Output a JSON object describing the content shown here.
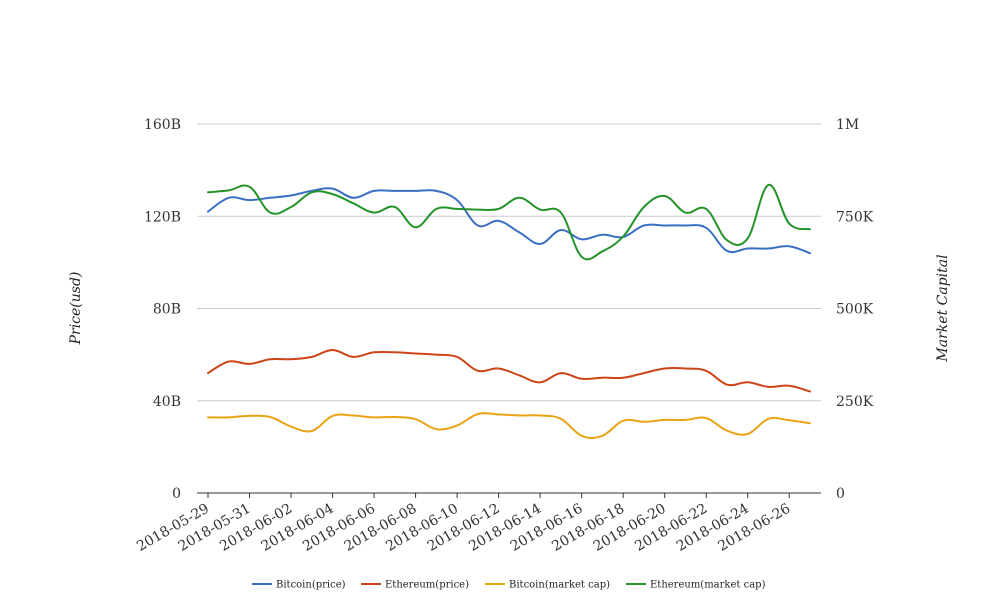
{
  "chart_data": {
    "type": "line",
    "ylabel": "Price(usd)",
    "y2label": "Market Capital",
    "ylim": [
      0,
      160000000000
    ],
    "y2lim": [
      0,
      1000000
    ],
    "yticks": [
      "0",
      "40B",
      "80B",
      "120B",
      "160B"
    ],
    "y2ticks": [
      "0",
      "250K",
      "500K",
      "750K",
      "1M"
    ],
    "xtick_labels": [
      "2018-05-29",
      "2018-05-31",
      "2018-06-02",
      "2018-06-04",
      "2018-06-06",
      "2018-06-08",
      "2018-06-10",
      "2018-06-12",
      "2018-06-14",
      "2018-06-16",
      "2018-06-18",
      "2018-06-20",
      "2018-06-22",
      "2018-06-24",
      "2018-06-26"
    ],
    "categories": [
      "2018-05-29",
      "2018-05-30",
      "2018-05-31",
      "2018-06-01",
      "2018-06-02",
      "2018-06-03",
      "2018-06-04",
      "2018-06-05",
      "2018-06-06",
      "2018-06-07",
      "2018-06-08",
      "2018-06-09",
      "2018-06-10",
      "2018-06-11",
      "2018-06-12",
      "2018-06-13",
      "2018-06-14",
      "2018-06-15",
      "2018-06-16",
      "2018-06-17",
      "2018-06-18",
      "2018-06-19",
      "2018-06-20",
      "2018-06-21",
      "2018-06-22",
      "2018-06-23",
      "2018-06-24",
      "2018-06-25",
      "2018-06-26",
      "2018-06-27"
    ],
    "legend_position": "bottom",
    "grid": true,
    "series": [
      {
        "name": "Bitcoin(price)",
        "axis": "left",
        "color": "#3a6fc4",
        "values": [
          122,
          128,
          127,
          128,
          129,
          131,
          132,
          128,
          131,
          131,
          131,
          131,
          127,
          116,
          118,
          113,
          108,
          114,
          110,
          112,
          111,
          116,
          116,
          116,
          115,
          105,
          106,
          106,
          107,
          104
        ]
      },
      {
        "name": "Ethereum(price)",
        "axis": "left",
        "color": "#cc4418",
        "values": [
          52,
          57,
          56,
          58,
          58,
          59,
          62,
          59,
          61,
          61,
          60.5,
          60,
          59,
          53,
          54,
          51,
          48,
          52,
          49.5,
          50,
          50,
          52,
          54,
          54,
          53,
          47,
          48,
          46,
          46.5,
          44
        ]
      },
      {
        "name": "Bitcoin(market cap)",
        "axis": "right",
        "color": "#eaa314",
        "values": [
          205,
          205,
          209,
          206,
          180,
          168,
          209,
          210,
          205,
          206,
          200,
          173,
          183,
          214,
          213,
          210,
          210,
          201,
          155,
          155,
          196,
          193,
          198,
          198,
          203,
          169,
          160,
          201,
          197,
          189
        ]
      },
      {
        "name": "Ethereum(market cap)",
        "axis": "right",
        "color": "#23932a",
        "values": [
          815,
          820,
          830,
          760,
          775,
          815,
          810,
          785,
          760,
          775,
          720,
          770,
          770,
          768,
          770,
          800,
          768,
          760,
          640,
          655,
          695,
          775,
          805,
          760,
          770,
          685,
          690,
          835,
          730,
          715
        ]
      }
    ]
  }
}
